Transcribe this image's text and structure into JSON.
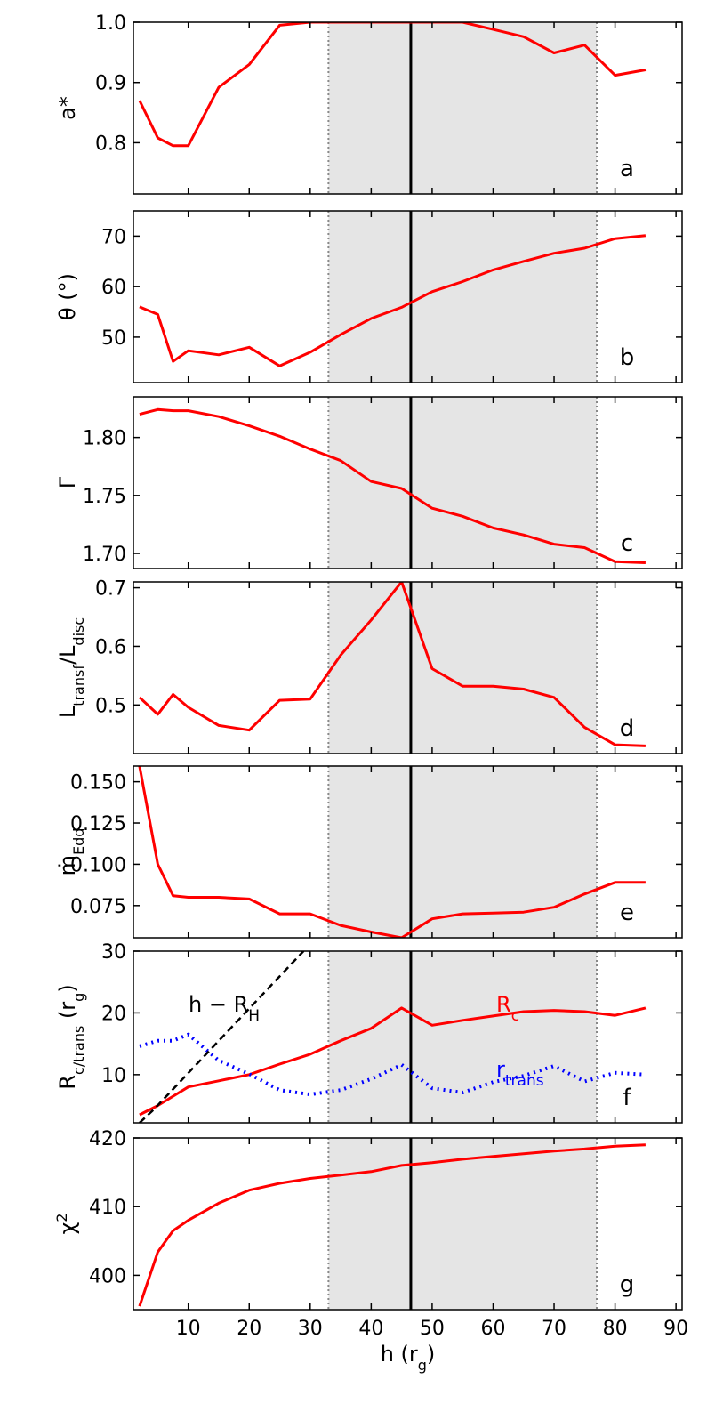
{
  "chart_data": {
    "type": "line",
    "xlabel": "h (r",
    "xlabel_sub": "g",
    "xlabel_end": ")",
    "xlim": [
      1,
      91
    ],
    "xticks": [
      10,
      20,
      30,
      40,
      50,
      60,
      70,
      80,
      90
    ],
    "shaded_region": [
      33,
      77
    ],
    "vertical_line": 46.5,
    "h": [
      2,
      5,
      7.5,
      10,
      15,
      20,
      25,
      30,
      35,
      40,
      45,
      50,
      55,
      60,
      65,
      70,
      75,
      80,
      85
    ],
    "panels": [
      {
        "id": "a",
        "letter": "a",
        "ylabel": "a*",
        "ylabel_sub": "",
        "ylabel_end": "",
        "ylim": [
          0.715,
          1.0
        ],
        "yticks": [
          0.8,
          0.9,
          1.0
        ],
        "yticklabels": [
          "0.8",
          "0.9",
          "1.0"
        ],
        "series": [
          {
            "color": "#ff0000",
            "style": "solid",
            "values": [
              0.87,
              0.808,
              0.795,
              0.795,
              0.892,
              0.93,
              0.995,
              1.0,
              1.0,
              1.0,
              1.0,
              1.0,
              1.0,
              0.988,
              0.976,
              0.949,
              0.962,
              0.912,
              0.921
            ]
          }
        ]
      },
      {
        "id": "b",
        "letter": "b",
        "ylabel": "θ (°)",
        "ylabel_sub": "",
        "ylabel_end": "",
        "ylim": [
          41,
          75
        ],
        "yticks": [
          50,
          60,
          70
        ],
        "yticklabels": [
          "50",
          "60",
          "70"
        ],
        "series": [
          {
            "color": "#ff0000",
            "style": "solid",
            "values": [
              56,
              54.5,
              45.2,
              47.3,
              46.5,
              48,
              44.3,
              47,
              50.5,
              53.7,
              55.9,
              59,
              61,
              63.3,
              65,
              66.6,
              67.6,
              69.5,
              70.1
            ]
          }
        ]
      },
      {
        "id": "c",
        "letter": "c",
        "ylabel": "Γ",
        "ylabel_sub": "",
        "ylabel_end": "",
        "ylim": [
          1.687,
          1.835
        ],
        "yticks": [
          1.7,
          1.75,
          1.8
        ],
        "yticklabels": [
          "1.70",
          "1.75",
          "1.80"
        ],
        "series": [
          {
            "color": "#ff0000",
            "style": "solid",
            "values": [
              1.82,
              1.824,
              1.823,
              1.823,
              1.818,
              1.81,
              1.801,
              1.79,
              1.78,
              1.762,
              1.756,
              1.739,
              1.732,
              1.722,
              1.716,
              1.708,
              1.705,
              1.693,
              1.692
            ]
          }
        ]
      },
      {
        "id": "d",
        "letter": "d",
        "ylabel": "L",
        "ylabel_sub": "transf",
        "ylabel_end": "/L",
        "ylabel_sub2": "disc",
        "ylim": [
          0.417,
          0.71
        ],
        "yticks": [
          0.5,
          0.6,
          0.7
        ],
        "yticklabels": [
          "0.5",
          "0.6",
          "0.7"
        ],
        "series": [
          {
            "color": "#ff0000",
            "style": "solid",
            "values": [
              0.513,
              0.484,
              0.518,
              0.496,
              0.465,
              0.457,
              0.508,
              0.51,
              0.585,
              0.645,
              0.71,
              0.562,
              0.532,
              0.532,
              0.527,
              0.513,
              0.462,
              0.432,
              0.43
            ]
          }
        ]
      },
      {
        "id": "e",
        "letter": "e",
        "ylabel": "ṁ",
        "ylabel_sub": "Edd",
        "ylabel_end": "",
        "ylim": [
          0.0555,
          0.1595
        ],
        "yticks": [
          0.075,
          0.1,
          0.125,
          0.15
        ],
        "yticklabels": [
          "0.075",
          "0.100",
          "0.125",
          "0.150"
        ],
        "series": [
          {
            "color": "#ff0000",
            "style": "solid",
            "values": [
              0.1595,
              0.1,
              0.081,
              0.08,
              0.08,
              0.079,
              0.07,
              0.07,
              0.063,
              0.059,
              0.0555,
              0.067,
              0.07,
              0.0705,
              0.071,
              0.074,
              0.082,
              0.089,
              0.089
            ]
          }
        ]
      },
      {
        "id": "f",
        "letter": "f",
        "ylabel": "R",
        "ylabel_sub": "c/trans",
        "ylabel_end": " (r",
        "ylabel_sub2": "g",
        "ylabel_end2": ")",
        "ylim": [
          2.2,
          30
        ],
        "yticks": [
          10,
          20,
          30
        ],
        "yticklabels": [
          "10",
          "20",
          "30"
        ],
        "series": [
          {
            "name": "R",
            "name_sub": "c",
            "color": "#ff0000",
            "style": "solid",
            "values": [
              3.5,
              5,
              6.5,
              8,
              9,
              10,
              11.7,
              13.3,
              15.5,
              17.5,
              20.8,
              18,
              18.8,
              19.5,
              20.2,
              20.4,
              20.2,
              19.6,
              20.8
            ]
          },
          {
            "name": "r",
            "name_sub": "trans",
            "color": "#0000ff",
            "style": "dotted",
            "values": [
              14.6,
              15.5,
              15.5,
              16.5,
              12.3,
              10.1,
              7.5,
              6.8,
              7.5,
              9.3,
              11.6,
              7.8,
              7.1,
              8.8,
              9.8,
              11.4,
              8.9,
              10.3,
              10
            ]
          },
          {
            "name": "h − R",
            "name_sub": "H",
            "color": "#000000",
            "style": "dashed",
            "x_values": [
              2,
              4.4,
              28.9
            ],
            "values": [
              2.2,
              4.4,
              30
            ]
          }
        ]
      },
      {
        "id": "g",
        "letter": "g",
        "ylabel": "χ",
        "ylabel_sup": "2",
        "ylabel_sub": "",
        "ylabel_end": "",
        "ylim": [
          395,
          420
        ],
        "yticks": [
          400,
          410,
          420
        ],
        "yticklabels": [
          "400",
          "410",
          "420"
        ],
        "series": [
          {
            "color": "#ff0000",
            "style": "solid",
            "values": [
              395.5,
              403.4,
              406.5,
              408,
              410.5,
              412.4,
              413.4,
              414.1,
              414.6,
              415.1,
              416,
              416.4,
              416.9,
              417.3,
              417.7,
              418.1,
              418.4,
              418.8,
              419
            ]
          }
        ]
      }
    ]
  }
}
